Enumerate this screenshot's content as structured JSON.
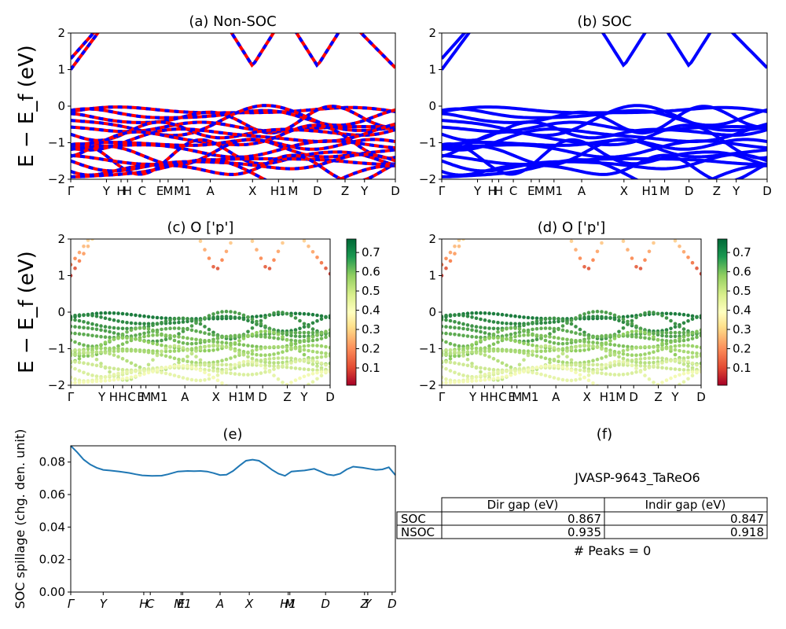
{
  "chart_data": [
    {
      "id": "a",
      "type": "line",
      "title": "(a) Non-SOC",
      "ylabel": "E − E_f (eV)",
      "ylim": [
        -2,
        2
      ],
      "yticks": [
        "−2",
        "−1",
        "0",
        "1",
        "2"
      ],
      "xticks": [
        "Γ",
        "Y",
        "H",
        "H",
        "C",
        "E",
        "M",
        "M1",
        "A",
        "X",
        "H1",
        "M",
        "D",
        "Z",
        "Y",
        "D"
      ],
      "series_colors": [
        "#ff0000",
        "#0000ff"
      ]
    },
    {
      "id": "b",
      "type": "line",
      "title": "(b) SOC",
      "ylim": [
        -2,
        2
      ],
      "yticks": [
        "−2",
        "−1",
        "0",
        "1",
        "2"
      ],
      "xticks": [
        "Γ",
        "Y",
        "H",
        "H",
        "C",
        "E",
        "M",
        "M1",
        "A",
        "X",
        "H1",
        "M",
        "D",
        "Z",
        "Y",
        "D"
      ],
      "series_colors": [
        "#0000ff"
      ]
    },
    {
      "id": "c",
      "type": "scatter",
      "title": "(c)  O ['p']",
      "ylabel": "E − E_f (eV)",
      "ylim": [
        -2,
        2
      ],
      "yticks": [
        "−2",
        "−1",
        "0",
        "1",
        "2"
      ],
      "xticks": [
        "Γ",
        "Y",
        "H",
        "H",
        "C",
        "E",
        "M",
        "M1",
        "A",
        "X",
        "H1",
        "M",
        "D",
        "Z",
        "Y",
        "D"
      ],
      "colorbar_ticks": [
        "0.1",
        "0.2",
        "0.3",
        "0.4",
        "0.5",
        "0.6",
        "0.7"
      ],
      "colorbar_range": [
        0.01,
        0.77
      ],
      "colormap": "RdYlGn"
    },
    {
      "id": "d",
      "type": "scatter",
      "title": "(d) O ['p']",
      "ylim": [
        -2,
        2
      ],
      "yticks": [
        "−2",
        "−1",
        "0",
        "1",
        "2"
      ],
      "xticks": [
        "Γ",
        "Y",
        "H",
        "H",
        "C",
        "E",
        "M",
        "M1",
        "A",
        "X",
        "H1",
        "M",
        "D",
        "Z",
        "Y",
        "D"
      ],
      "colorbar_ticks": [
        "0.1",
        "0.2",
        "0.3",
        "0.4",
        "0.5",
        "0.6",
        "0.7"
      ],
      "colorbar_range": [
        0.01,
        0.77
      ],
      "colormap": "RdYlGn"
    },
    {
      "id": "e",
      "type": "line",
      "title": "(e)",
      "ylabel": "SOC spillage (chg. den. unit)",
      "ylim": [
        0,
        0.09
      ],
      "yticks": [
        "0.00",
        "0.02",
        "0.04",
        "0.06",
        "0.08"
      ],
      "xticks": [
        "Γ",
        "Y",
        "H",
        "C",
        "E",
        "M1",
        "A",
        "X",
        "H1",
        "M",
        "D",
        "Z",
        "Y",
        "D"
      ],
      "series": [
        {
          "x": [
            0,
            0.02,
            0.04,
            0.06,
            0.08,
            0.1,
            0.12,
            0.15,
            0.18,
            0.2,
            0.22,
            0.25,
            0.28,
            0.3,
            0.33,
            0.36,
            0.38,
            0.4,
            0.42,
            0.44,
            0.46,
            0.48,
            0.5,
            0.52,
            0.54,
            0.56,
            0.58,
            0.6,
            0.62,
            0.64,
            0.66,
            0.68,
            0.7,
            0.72,
            0.74,
            0.75,
            0.77,
            0.79,
            0.81,
            0.83,
            0.85,
            0.87,
            0.9,
            0.92,
            0.94,
            0.96,
            0.98,
            1.0
          ],
          "y": [
            0.09,
            0.086,
            0.0815,
            0.0785,
            0.0765,
            0.0752,
            0.0748,
            0.0742,
            0.0733,
            0.0725,
            0.0718,
            0.0715,
            0.0716,
            0.0725,
            0.0742,
            0.0745,
            0.0744,
            0.0745,
            0.0742,
            0.0732,
            0.072,
            0.0722,
            0.0745,
            0.0778,
            0.0808,
            0.0815,
            0.0808,
            0.0782,
            0.0752,
            0.0728,
            0.0715,
            0.0742,
            0.0745,
            0.0748,
            0.0755,
            0.0758,
            0.0742,
            0.0724,
            0.0718,
            0.0728,
            0.0755,
            0.0772,
            0.0765,
            0.0758,
            0.0752,
            0.0755,
            0.0768,
            0.072
          ]
        }
      ]
    }
  ],
  "panel_f": {
    "title": "(f)",
    "material": "JVASP-9643_TaReO6",
    "headers": [
      "Dir gap (eV)",
      "Indir gap (eV)"
    ],
    "rows": [
      {
        "label": "SOC",
        "dir": "0.867",
        "indir": "0.847"
      },
      {
        "label": "NSOC",
        "dir": "0.935",
        "indir": "0.918"
      }
    ],
    "peaks": "# Peaks = 0"
  }
}
